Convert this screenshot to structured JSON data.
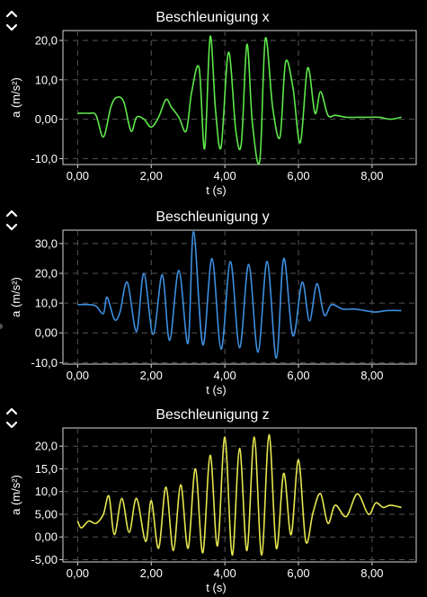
{
  "chart_data": [
    {
      "type": "line",
      "title": "Beschleunigung x",
      "xlabel": "t (s)",
      "ylabel": "a (m/s²)",
      "xlim": [
        -0.4,
        9.2
      ],
      "ylim": [
        -11.5,
        22.5
      ],
      "xticks": [
        0,
        2,
        4,
        6,
        8
      ],
      "xtick_labels": [
        "0,00",
        "2,00",
        "4,00",
        "6,00",
        "8,00"
      ],
      "yticks": [
        -10,
        0,
        10,
        20
      ],
      "ytick_labels": [
        "-10,0",
        "0,00",
        "10,0",
        "20,0"
      ],
      "grid": true,
      "color": "#5ee84a",
      "series": [
        {
          "x": [
            0.0,
            0.3,
            0.5,
            0.7,
            0.9,
            1.05,
            1.25,
            1.45,
            1.6,
            1.8,
            2.0,
            2.2,
            2.4,
            2.55,
            2.75,
            2.95,
            3.1,
            3.3,
            3.45,
            3.6,
            3.75,
            3.9,
            4.1,
            4.3,
            4.45,
            4.6,
            4.75,
            4.95,
            5.1,
            5.3,
            5.5,
            5.65,
            5.85,
            6.05,
            6.25,
            6.45,
            6.6,
            6.8,
            7.0,
            7.3,
            7.6,
            7.9,
            8.2,
            8.5,
            8.8
          ],
          "y": [
            1.5,
            1.5,
            1.0,
            -4.5,
            3.0,
            5.5,
            4.5,
            -3.0,
            0.5,
            0.0,
            -2.0,
            0.5,
            5.0,
            3.0,
            0.5,
            -3.0,
            7.0,
            13.0,
            -7.5,
            21.0,
            2.0,
            -7.0,
            17.0,
            -3.0,
            -6.0,
            19.0,
            -1.0,
            -10.5,
            20.5,
            3.0,
            -4.5,
            14.5,
            8.0,
            -6.0,
            13.0,
            1.5,
            7.0,
            1.0,
            1.0,
            0.5,
            0.5,
            0.5,
            0.5,
            0.0,
            0.5
          ]
        }
      ]
    },
    {
      "type": "line",
      "title": "Beschleunigung y",
      "xlabel": "t (s)",
      "ylabel": "a (m/s²)",
      "xlim": [
        -0.4,
        9.2
      ],
      "ylim": [
        -10.5,
        34.5
      ],
      "xticks": [
        0,
        2,
        4,
        6,
        8
      ],
      "xtick_labels": [
        "0,00",
        "2,00",
        "4,00",
        "6,00",
        "8,00"
      ],
      "yticks": [
        -10,
        0,
        10,
        20,
        30
      ],
      "ytick_labels": [
        "-10,0",
        "0,00",
        "10,0",
        "20,0",
        "30,0"
      ],
      "grid": true,
      "color": "#3d8fe0",
      "series": [
        {
          "x": [
            0.0,
            0.3,
            0.5,
            0.7,
            0.8,
            1.0,
            1.15,
            1.35,
            1.6,
            1.8,
            2.05,
            2.3,
            2.5,
            2.75,
            3.0,
            3.15,
            3.4,
            3.65,
            3.9,
            4.15,
            4.4,
            4.65,
            4.9,
            5.15,
            5.4,
            5.6,
            5.85,
            6.1,
            6.3,
            6.5,
            6.7,
            6.9,
            7.2,
            7.5,
            7.8,
            8.1,
            8.4,
            8.7,
            8.8
          ],
          "y": [
            9.5,
            9.5,
            9.0,
            6.5,
            12.0,
            4.5,
            7.0,
            17.0,
            0.5,
            20.0,
            -0.5,
            19.5,
            -2.5,
            21.0,
            -3.5,
            34.0,
            -4.0,
            25.0,
            -5.5,
            24.0,
            -5.0,
            23.0,
            -6.5,
            24.0,
            -8.5,
            25.0,
            -1.0,
            17.0,
            4.0,
            16.5,
            6.0,
            9.5,
            8.0,
            8.0,
            7.5,
            7.0,
            7.5,
            7.5,
            7.5
          ]
        }
      ]
    },
    {
      "type": "line",
      "title": "Beschleunigung z",
      "xlabel": "t (s)",
      "ylabel": "a (m/s²)",
      "xlim": [
        -0.4,
        9.2
      ],
      "ylim": [
        -5.5,
        24.0
      ],
      "xticks": [
        0,
        2,
        4,
        6,
        8
      ],
      "xtick_labels": [
        "0,00",
        "2,00",
        "4,00",
        "6,00",
        "8,00"
      ],
      "yticks": [
        -5,
        0,
        5,
        10,
        15,
        20
      ],
      "ytick_labels": [
        "-5,00",
        "0,00",
        "5,00",
        "10,0",
        "15,0",
        "20,0"
      ],
      "grid": true,
      "color": "#e6e650",
      "series": [
        {
          "x": [
            0.0,
            0.1,
            0.3,
            0.5,
            0.7,
            0.85,
            1.0,
            1.2,
            1.4,
            1.6,
            1.85,
            2.0,
            2.2,
            2.4,
            2.6,
            2.8,
            3.0,
            3.2,
            3.4,
            3.6,
            3.8,
            4.0,
            4.2,
            4.4,
            4.6,
            4.8,
            5.0,
            5.2,
            5.4,
            5.6,
            5.8,
            6.0,
            6.2,
            6.4,
            6.6,
            6.8,
            7.0,
            7.3,
            7.6,
            7.9,
            8.1,
            8.3,
            8.5,
            8.8
          ],
          "y": [
            3.5,
            2.0,
            3.5,
            3.0,
            5.0,
            9.0,
            0.5,
            8.5,
            1.0,
            8.5,
            -1.0,
            8.0,
            -2.5,
            11.0,
            -3.0,
            11.5,
            -2.5,
            15.0,
            -3.5,
            18.0,
            -2.0,
            22.0,
            -4.0,
            19.5,
            -3.0,
            22.0,
            -4.0,
            22.5,
            -2.5,
            14.0,
            0.5,
            17.0,
            -1.0,
            5.5,
            9.5,
            3.0,
            7.0,
            4.5,
            9.5,
            5.0,
            7.5,
            6.5,
            7.0,
            6.5
          ]
        }
      ]
    }
  ]
}
